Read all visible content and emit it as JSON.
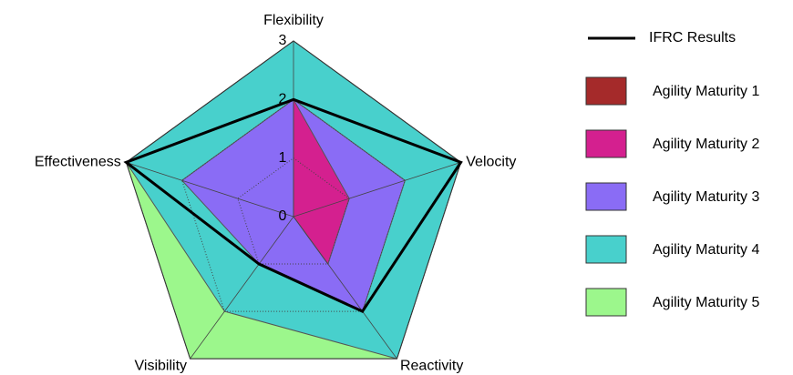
{
  "chart_data": {
    "type": "radar",
    "categories": [
      "Flexibility",
      "Velocity",
      "Reactivity",
      "Visibility",
      "Effectiveness"
    ],
    "ylim": [
      0,
      3
    ],
    "yticks": [
      0,
      1,
      2,
      3
    ],
    "grid": true,
    "legend": "right",
    "series": [
      {
        "name": "IFRC Results",
        "color": "#000000",
        "fill": false,
        "values": [
          2,
          3,
          2,
          1,
          3
        ]
      },
      {
        "name": "Agility Maturity 1",
        "color": "#a52a2a",
        "fill": true,
        "values": [
          1,
          0,
          0,
          0,
          0
        ]
      },
      {
        "name": "Agility Maturity 2",
        "color": "#d4208f",
        "fill": true,
        "values": [
          2,
          1,
          1,
          0,
          0
        ]
      },
      {
        "name": "Agility Maturity 3",
        "color": "#8a6cf5",
        "fill": true,
        "values": [
          2,
          2,
          2,
          1,
          2
        ]
      },
      {
        "name": "Agility Maturity 4",
        "color": "#48d0cc",
        "fill": true,
        "values": [
          3,
          3,
          3,
          2,
          3
        ]
      },
      {
        "name": "Agility Maturity 5",
        "color": "#9cf78c",
        "fill": true,
        "values": [
          3,
          3,
          3,
          3,
          3
        ]
      }
    ]
  }
}
